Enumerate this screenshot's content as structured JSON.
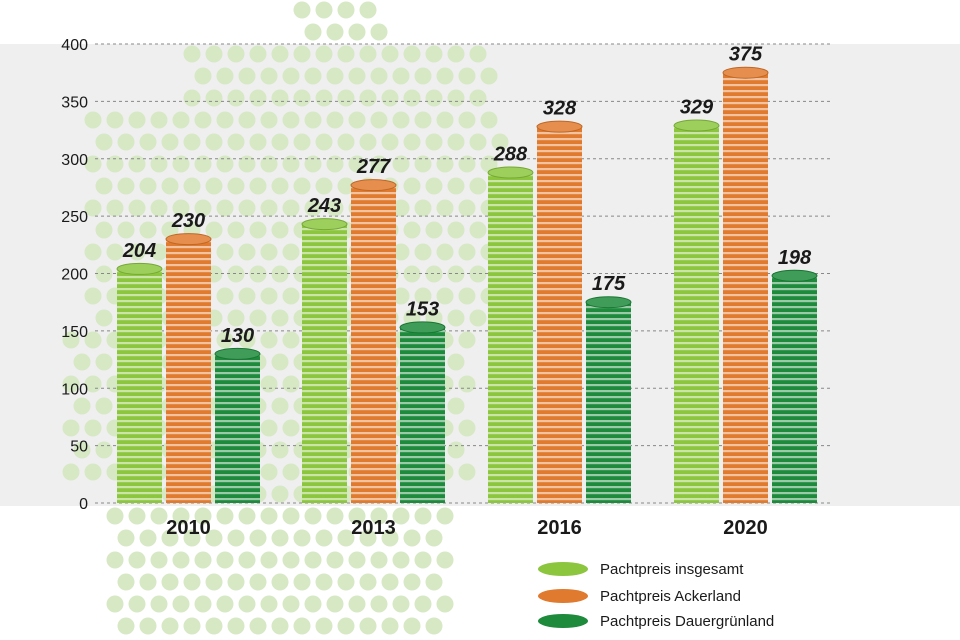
{
  "chart_data": {
    "type": "bar",
    "categories": [
      "2010",
      "2013",
      "2016",
      "2020"
    ],
    "series": [
      {
        "name": "Pachtpreis insgesamt",
        "color": "#8cc63f",
        "values": [
          204,
          243,
          288,
          329
        ]
      },
      {
        "name": "Pachtpreis Ackerland",
        "color": "#e07a2e",
        "values": [
          230,
          277,
          328,
          375
        ]
      },
      {
        "name": "Pachtpreis Dauergrünland",
        "color": "#1e8a3c",
        "values": [
          130,
          153,
          175,
          198
        ]
      }
    ],
    "y_ticks": [
      "0",
      "50",
      "100",
      "150",
      "200",
      "250",
      "300",
      "350",
      "400"
    ],
    "ylim": [
      0,
      400
    ],
    "grid": true,
    "legend_position": "bottom-right",
    "title": "",
    "xlabel": "",
    "ylabel": ""
  },
  "colors": {
    "plot_background": "#efefef",
    "grid": "#888888",
    "map_dots": "#d6e8c4"
  }
}
